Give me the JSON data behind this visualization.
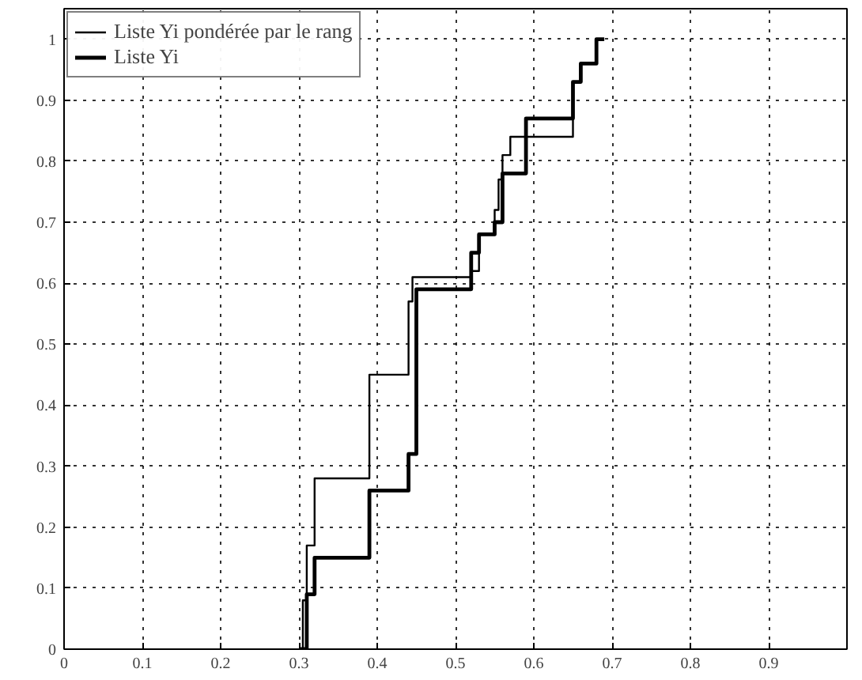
{
  "chart_data": {
    "type": "step",
    "xlim": [
      0,
      1
    ],
    "ylim": [
      0,
      1.05
    ],
    "xticks": [
      0,
      0.1,
      0.2,
      0.3,
      0.4,
      0.5,
      0.6,
      0.7,
      0.8,
      0.9,
      {
        "value": 1,
        "label": null
      }
    ],
    "yticks": [
      0,
      0.1,
      0.2,
      0.3,
      0.4,
      0.5,
      0.6,
      0.7,
      0.8,
      0.9,
      1
    ],
    "grid": true,
    "legend": "top left",
    "line_style": "solid",
    "series": [
      {
        "name": "Liste Yi pondérée par le rang",
        "color": "#000000",
        "x": [
          0.3,
          0.305,
          0.31,
          0.32,
          0.39,
          0.44,
          0.445,
          0.52,
          0.53,
          0.55,
          0.555,
          0.56,
          0.57,
          0.65,
          0.66,
          0.68,
          0.69
        ],
        "values": [
          0,
          0.08,
          0.17,
          0.28,
          0.45,
          0.57,
          0.61,
          0.62,
          0.68,
          0.72,
          0.77,
          0.81,
          0.84,
          0.93,
          0.96,
          1.0,
          1.0
        ]
      },
      {
        "name": "Liste Yi",
        "color": "#000000",
        "x": [
          0.3,
          0.31,
          0.32,
          0.39,
          0.44,
          0.45,
          0.52,
          0.53,
          0.55,
          0.56,
          0.59,
          0.65,
          0.66,
          0.68,
          0.69
        ],
        "values": [
          0,
          0.09,
          0.15,
          0.26,
          0.32,
          0.59,
          0.65,
          0.68,
          0.7,
          0.78,
          0.87,
          0.93,
          0.96,
          1.0,
          1.0
        ]
      }
    ]
  }
}
